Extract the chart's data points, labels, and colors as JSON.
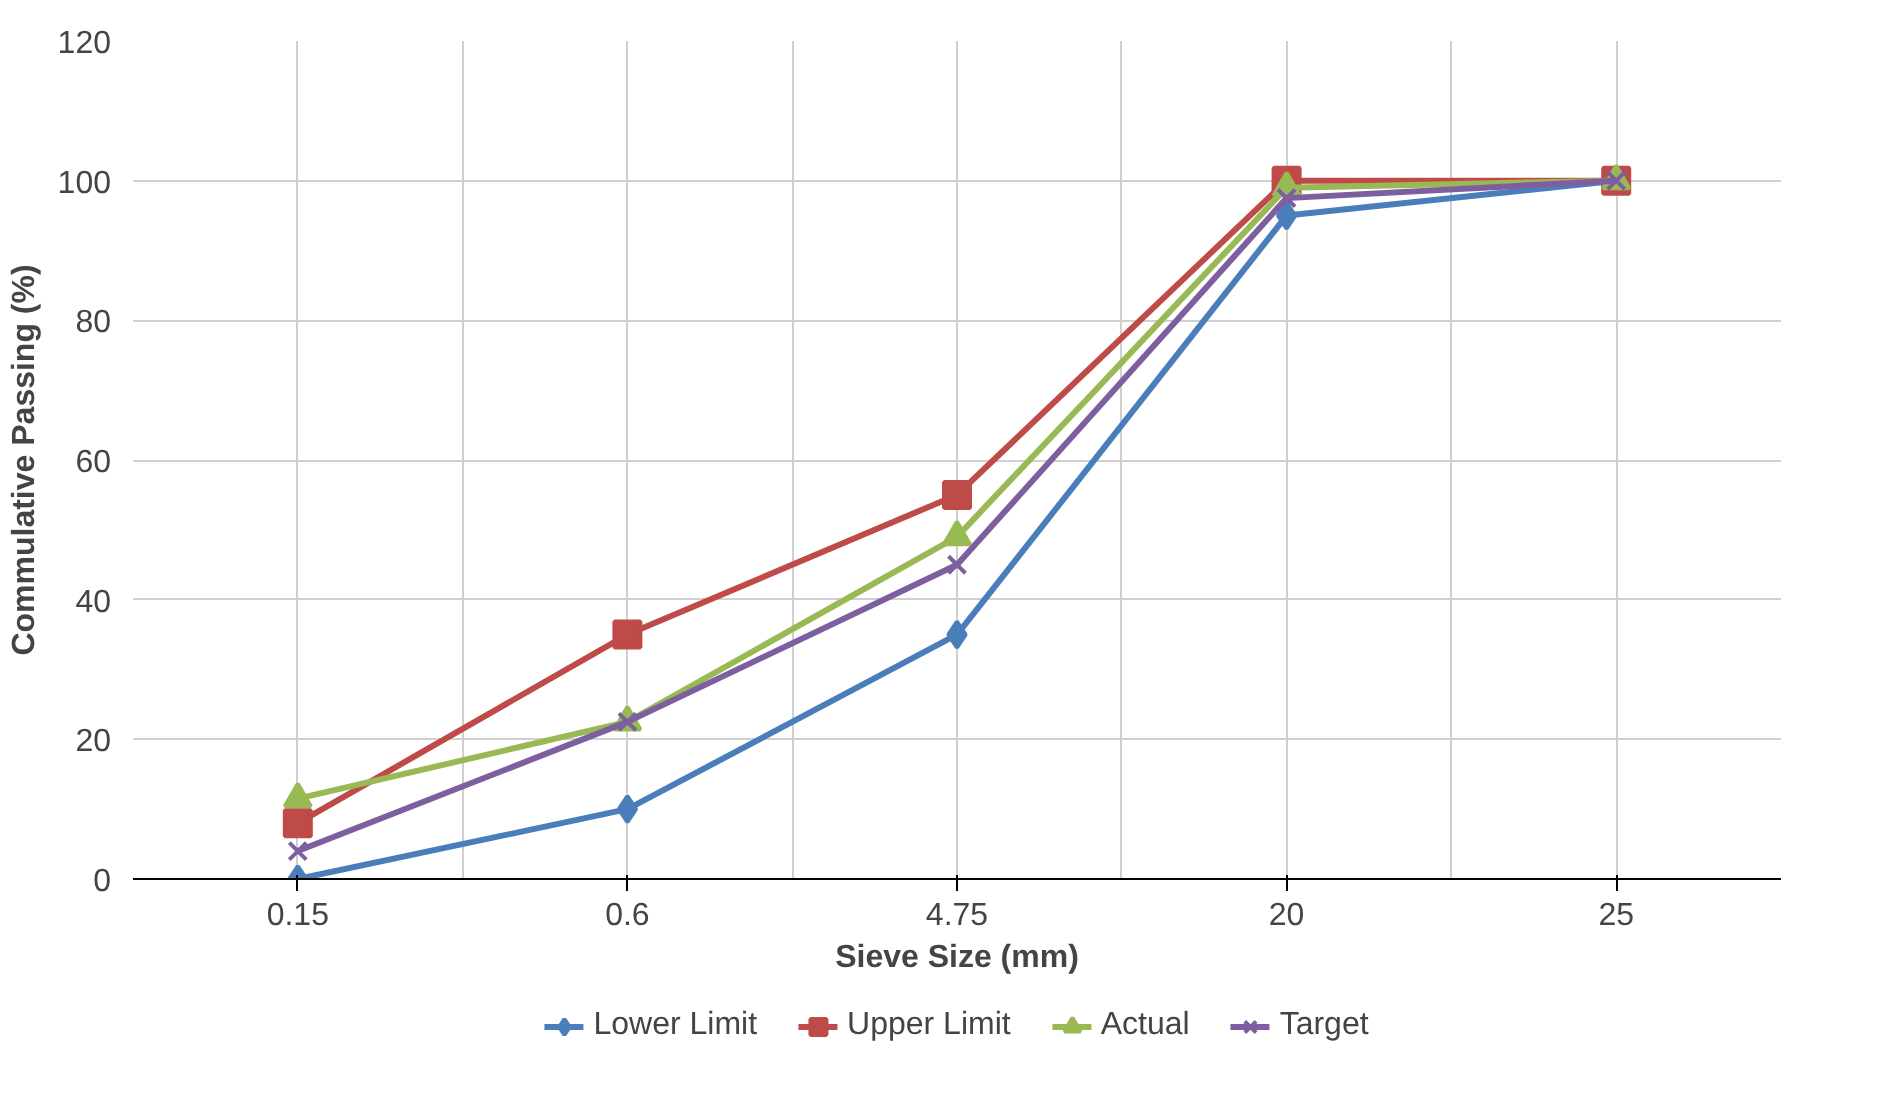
{
  "chart_data": {
    "type": "line",
    "xlabel": "Sieve Size (mm)",
    "ylabel": "Commulative Passing (%)",
    "categories": [
      "0.15",
      "0.6",
      "4.75",
      "20",
      "25"
    ],
    "ylim": [
      0,
      120
    ],
    "yticks": [
      0,
      20,
      40,
      60,
      80,
      100,
      120
    ],
    "grid": true,
    "legend": "bottom",
    "line_style": "solid",
    "series": [
      {
        "name": "Lower Limit",
        "color": "#4a7ebb",
        "marker": "diamond",
        "values": [
          0,
          10,
          35,
          95,
          100
        ]
      },
      {
        "name": "Upper Limit",
        "color": "#be4b48",
        "marker": "square",
        "values": [
          8,
          35,
          55,
          100,
          100
        ]
      },
      {
        "name": "Actual",
        "color": "#98b954",
        "marker": "triangle",
        "values": [
          11.5,
          22.5,
          49,
          99,
          100
        ]
      },
      {
        "name": "Target",
        "color": "#7d5fa0",
        "marker": "x",
        "values": [
          4,
          22.5,
          45,
          97.5,
          100
        ]
      }
    ]
  }
}
